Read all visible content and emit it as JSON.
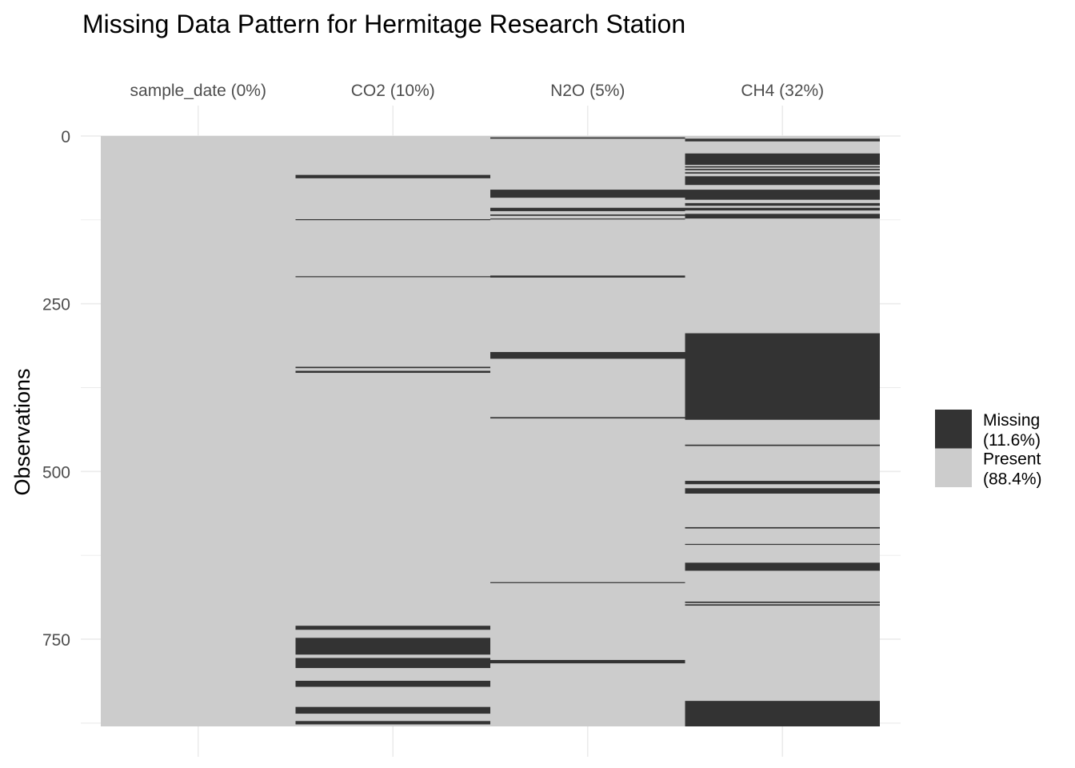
{
  "chart_data": {
    "type": "heatmap",
    "title": "Missing Data Pattern for Hermitage Research Station",
    "ylabel": "Observations",
    "xlabel": "",
    "n_obs": 880,
    "ylim": [
      0,
      880
    ],
    "y_ticks": [
      0,
      250,
      500,
      750
    ],
    "y_tick_labels": [
      "0",
      "250",
      "500",
      "750"
    ],
    "grid": true,
    "legend_position": "right",
    "colors": {
      "missing": "#333333",
      "present": "#cccccc"
    },
    "legend": [
      {
        "key": "missing",
        "line1": "Missing",
        "line2": "(11.6%)"
      },
      {
        "key": "present",
        "line1": "Present",
        "line2": "(88.4%)"
      }
    ],
    "columns": [
      {
        "name": "sample_date",
        "label": "sample_date (0%)",
        "missing_ranges": []
      },
      {
        "name": "CO2",
        "label": "CO2 (10%)",
        "missing_ranges": [
          [
            58,
            63
          ],
          [
            124,
            125
          ],
          [
            209,
            210
          ],
          [
            344,
            346
          ],
          [
            350,
            353
          ],
          [
            730,
            736
          ],
          [
            748,
            773
          ],
          [
            778,
            793
          ],
          [
            812,
            821
          ],
          [
            851,
            861
          ],
          [
            872,
            877
          ]
        ]
      },
      {
        "name": "N2O",
        "label": "N2O (5%)",
        "missing_ranges": [
          [
            2,
            4
          ],
          [
            80,
            92
          ],
          [
            107,
            112
          ],
          [
            117,
            119
          ],
          [
            123,
            124
          ],
          [
            208,
            211
          ],
          [
            322,
            332
          ],
          [
            419,
            421
          ],
          [
            665,
            666
          ],
          [
            781,
            786
          ]
        ]
      },
      {
        "name": "CH4",
        "label": "CH4 (32%)",
        "missing_ranges": [
          [
            4,
            8
          ],
          [
            26,
            43
          ],
          [
            45,
            47
          ],
          [
            49,
            51
          ],
          [
            54,
            56
          ],
          [
            60,
            73
          ],
          [
            80,
            95
          ],
          [
            100,
            104
          ],
          [
            107,
            111
          ],
          [
            116,
            123
          ],
          [
            294,
            423
          ],
          [
            460,
            462
          ],
          [
            514,
            519
          ],
          [
            525,
            533
          ],
          [
            583,
            585
          ],
          [
            608,
            609
          ],
          [
            636,
            648
          ],
          [
            694,
            696
          ],
          [
            698,
            700
          ],
          [
            842,
            880
          ]
        ]
      }
    ]
  }
}
